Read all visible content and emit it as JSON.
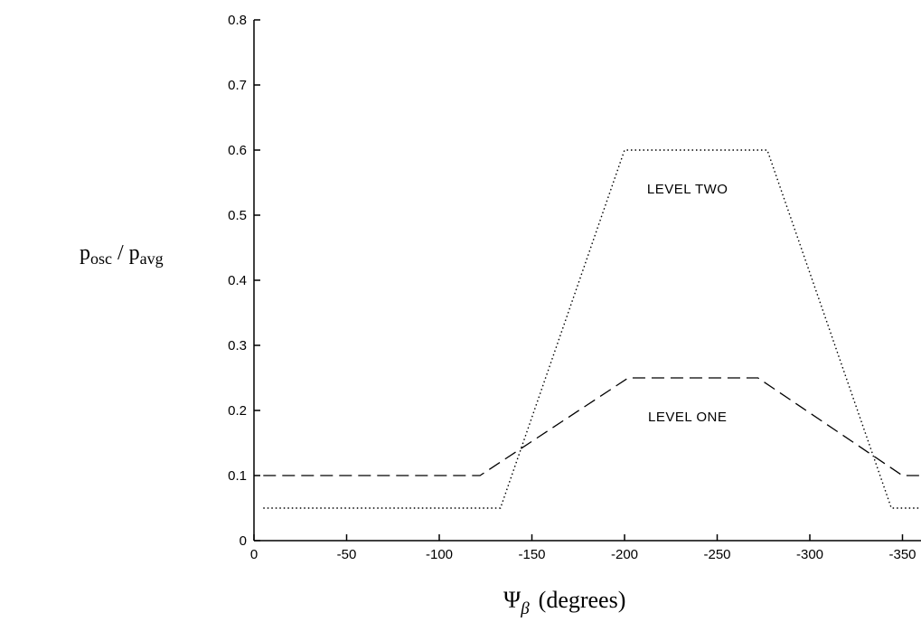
{
  "chart_data": {
    "type": "line",
    "ylabel": {
      "main_a": "p",
      "sub_a": "osc",
      "sep": " / ",
      "main_b": "p",
      "sub_b": "avg"
    },
    "xlabel": {
      "symbol": "Ψ",
      "sub": "β",
      "unit": "(degrees)"
    },
    "xlim": [
      0,
      -360
    ],
    "ylim": [
      0,
      0.8
    ],
    "x_ticks": [
      0,
      -50,
      -100,
      -150,
      -200,
      -250,
      -300,
      -350
    ],
    "x_tick_labels": [
      "0",
      "-50",
      "-100",
      "-150",
      "-200",
      "-250",
      "-300",
      "-350"
    ],
    "y_ticks": [
      0,
      0.1,
      0.2,
      0.3,
      0.4,
      0.5,
      0.6,
      0.7,
      0.8
    ],
    "y_tick_labels": [
      "0",
      "0.1",
      "0.2",
      "0.3",
      "0.4",
      "0.5",
      "0.6",
      "0.7",
      "0.8"
    ],
    "grid": false,
    "legend": "none",
    "series": [
      {
        "style": "dashed",
        "color": "#000000",
        "x": [
          -5,
          -122,
          -202,
          -272,
          -350,
          -360
        ],
        "y": [
          0.1,
          0.1,
          0.25,
          0.25,
          0.1,
          0.1
        ]
      },
      {
        "style": "dotted",
        "color": "#000000",
        "x": [
          -5,
          -133,
          -200,
          -277,
          -344,
          -360
        ],
        "y": [
          0.05,
          0.05,
          0.6,
          0.6,
          0.05,
          0.05
        ]
      }
    ],
    "annotations": [
      {
        "text": "LEVEL TWO",
        "x": -234,
        "y": 0.54
      },
      {
        "text": "LEVEL ONE",
        "x": -234,
        "y": 0.19
      }
    ]
  }
}
